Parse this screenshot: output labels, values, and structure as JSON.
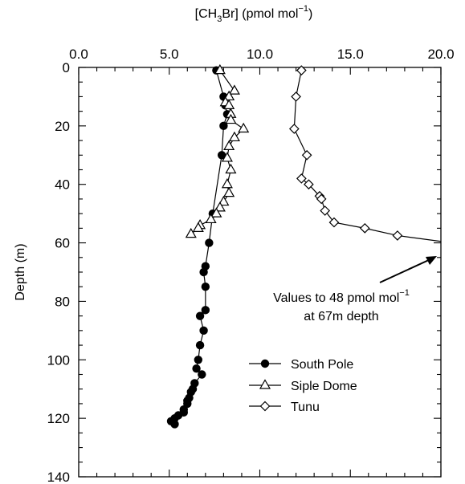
{
  "chart_data": {
    "type": "line",
    "title": "",
    "xlabel": {
      "main": "[CH",
      "sub": "3",
      "rest": "Br] (pmol mol",
      "sup": "−1",
      "close": ")"
    },
    "ylabel": "Depth (m)",
    "xlim": [
      0,
      20
    ],
    "ylim": [
      140,
      0
    ],
    "x_axis_position": "top",
    "y_reversed": true,
    "grid": false,
    "xticks": [
      0,
      5,
      10,
      15,
      20
    ],
    "xtick_labels": [
      "0.0",
      "5.0",
      "10.0",
      "15.0",
      "20.0"
    ],
    "yticks": [
      0,
      20,
      40,
      60,
      80,
      100,
      120,
      140
    ],
    "ytick_labels": [
      "0",
      "20",
      "40",
      "60",
      "80",
      "100",
      "120",
      "140"
    ],
    "legend_position": "lower-center",
    "series": [
      {
        "name": "South Pole",
        "marker": "filled-circle",
        "points": [
          [
            7.6,
            1
          ],
          [
            8.0,
            10
          ],
          [
            8.1,
            13
          ],
          [
            8.2,
            16
          ],
          [
            8.0,
            20
          ],
          [
            7.9,
            30
          ],
          [
            7.4,
            50
          ],
          [
            7.2,
            60
          ],
          [
            7.0,
            68
          ],
          [
            6.9,
            70
          ],
          [
            7.0,
            75
          ],
          [
            7.0,
            83
          ],
          [
            6.7,
            85
          ],
          [
            6.9,
            90
          ],
          [
            6.7,
            95
          ],
          [
            6.6,
            100
          ],
          [
            6.5,
            103
          ],
          [
            6.8,
            105
          ],
          [
            6.4,
            108
          ],
          [
            6.3,
            110
          ],
          [
            6.2,
            111
          ],
          [
            6.1,
            113
          ],
          [
            6.0,
            114
          ],
          [
            6.0,
            115
          ],
          [
            5.8,
            117
          ],
          [
            5.8,
            118
          ],
          [
            5.5,
            119
          ],
          [
            5.3,
            120
          ],
          [
            5.1,
            121
          ],
          [
            5.3,
            122
          ]
        ]
      },
      {
        "name": "Siple Dome",
        "marker": "open-triangle",
        "points": [
          [
            7.8,
            1
          ],
          [
            8.6,
            8
          ],
          [
            8.3,
            10
          ],
          [
            8.1,
            12
          ],
          [
            8.3,
            13
          ],
          [
            8.4,
            16
          ],
          [
            8.4,
            18
          ],
          [
            9.1,
            21
          ],
          [
            8.6,
            24
          ],
          [
            8.3,
            27
          ],
          [
            8.2,
            31
          ],
          [
            8.4,
            35
          ],
          [
            8.2,
            40
          ],
          [
            8.3,
            43
          ],
          [
            8.0,
            46
          ],
          [
            7.8,
            48
          ],
          [
            7.6,
            50
          ],
          [
            7.3,
            52
          ],
          [
            6.7,
            54
          ],
          [
            6.6,
            55
          ],
          [
            6.2,
            57
          ]
        ]
      },
      {
        "name": "Tunu",
        "marker": "open-diamond",
        "points": [
          [
            12.3,
            1
          ],
          [
            12.0,
            10
          ],
          [
            11.9,
            21
          ],
          [
            12.6,
            30
          ],
          [
            12.3,
            38
          ],
          [
            12.7,
            40
          ],
          [
            13.3,
            44
          ],
          [
            13.4,
            45
          ],
          [
            13.6,
            49
          ],
          [
            14.1,
            53
          ],
          [
            15.8,
            55
          ],
          [
            17.6,
            57.5
          ],
          [
            20,
            59.5
          ]
        ]
      }
    ],
    "annotation": {
      "line1_main": "Values to 48 pmol mol",
      "line1_sup": "−1",
      "line2": "at 67m depth",
      "arrow": "points to upper-right"
    }
  }
}
